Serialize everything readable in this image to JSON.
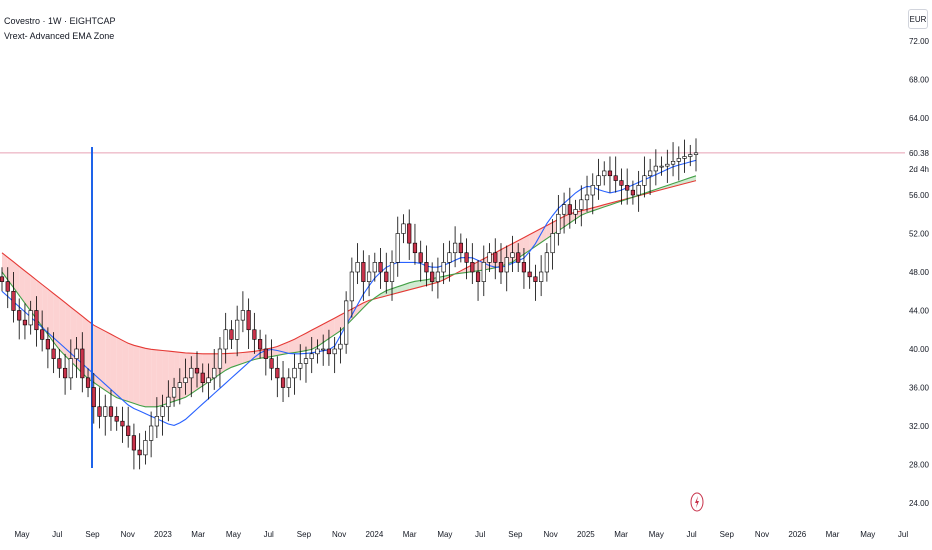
{
  "header": {
    "symbol_line": "Covestro · 1W · EIGHTCAP",
    "indicator_line": "Vrext- Advanced EMA Zone"
  },
  "currency_button": "EUR",
  "price_axis": {
    "ticks": [
      "72.00",
      "68.00",
      "64.00",
      "56.00",
      "52.00",
      "48.00",
      "44.00",
      "40.00",
      "36.00",
      "32.00",
      "28.00",
      "24.00"
    ],
    "current_price_label": "60.38",
    "countdown_label": "2d 4h"
  },
  "time_axis": {
    "labels": [
      "May",
      "Jul",
      "Sep",
      "Nov",
      "2023",
      "Mar",
      "May",
      "Jul",
      "Sep",
      "Nov",
      "2024",
      "Mar",
      "May",
      "Jul",
      "Sep",
      "Nov",
      "2025",
      "Mar",
      "May",
      "Jul",
      "Sep",
      "Nov",
      "2026",
      "Mar",
      "May",
      "Jul"
    ]
  },
  "colors": {
    "up_candle": "#ffffff",
    "down_candle": "#c8334b",
    "candle_outline": "#000000",
    "fast_ema": "#2962ff",
    "mid_ema": "#43a047",
    "slow_ema": "#e53935",
    "bull_zone": "#c8e6c9",
    "bear_zone": "#fbcaca",
    "price_line": "#e8a0b4",
    "vertical_marker": "#1e63e9"
  },
  "chart_data": {
    "type": "line",
    "ylim": [
      22,
      74
    ],
    "xlabel": "",
    "ylabel": "",
    "price_scale_ticks": [
      72,
      68,
      64,
      56,
      52,
      48,
      44,
      40,
      36,
      32,
      28,
      24
    ],
    "last_price": 60.38,
    "date_range": [
      "2022-03",
      "2026-07"
    ],
    "weekly_closes_approx": [
      47,
      46,
      44,
      43,
      42.5,
      44,
      42,
      41,
      40,
      39,
      38,
      37,
      39,
      40,
      37,
      36,
      34,
      33,
      34,
      33,
      32.5,
      32,
      31,
      29.5,
      29,
      30.5,
      32,
      33,
      34,
      35,
      36,
      36.5,
      37,
      38,
      37.5,
      36.5,
      37,
      38,
      40,
      42,
      41,
      43,
      44,
      42,
      41,
      40,
      39,
      38,
      37,
      36,
      37,
      38,
      38.5,
      39,
      39.5,
      40,
      40,
      39.5,
      40,
      40.5,
      45,
      48,
      49,
      47,
      48,
      49,
      48,
      47,
      49,
      52,
      53,
      51,
      50,
      49,
      48,
      47,
      48,
      49,
      50,
      51,
      50,
      49,
      48,
      47,
      49,
      50,
      49,
      48,
      49.5,
      50,
      49,
      48,
      47.5,
      47,
      48,
      50,
      52,
      54,
      55,
      54,
      54.5,
      55.5,
      56,
      57,
      58,
      58.5,
      58,
      57.5,
      57,
      56.5,
      56,
      57,
      58,
      58.5,
      59,
      59,
      59.2,
      59.5,
      59.8,
      60,
      60.2,
      60.38
    ],
    "series": [
      {
        "name": "",
        "role": "fast EMA",
        "values": [
          46,
          45,
          44,
          43,
          42,
          41,
          40,
          39,
          38,
          37,
          36,
          35,
          34,
          33.5,
          33,
          32.5,
          32,
          32.5,
          33.5,
          34.5,
          35.5,
          36.5,
          37.5,
          38.5,
          39.5,
          40,
          39.8,
          39.5,
          39.5,
          39.6,
          39.8,
          40,
          42,
          44,
          46,
          47.5,
          48.5,
          49,
          49,
          49,
          48.5,
          48.5,
          49,
          49.5,
          49.5,
          49,
          48.5,
          48.5,
          49,
          49.5,
          51,
          53,
          54.5,
          55.5,
          56.5,
          57,
          56.5,
          56.2,
          56.5,
          57,
          57.5,
          58,
          58.5,
          59,
          59.3,
          59.6
        ]
      },
      {
        "name": "",
        "role": "mid EMA",
        "values": [
          48,
          46,
          44,
          42,
          40,
          38.5,
          37,
          36,
          35,
          34.5,
          34,
          34,
          34.5,
          35,
          36,
          37,
          38,
          38.5,
          39,
          39.2,
          39.5,
          39.7,
          40,
          41,
          42,
          43.5,
          45,
          46,
          46.5,
          47,
          47.2,
          47.5,
          47.8,
          48,
          48.2,
          48.5,
          49,
          50,
          51,
          52,
          53,
          54,
          54.5,
          55,
          55.5,
          56,
          56.5,
          57,
          57.5,
          58
        ]
      },
      {
        "name": "",
        "role": "slow EMA",
        "values": [
          50,
          48.5,
          47,
          45.5,
          44,
          42.5,
          41.5,
          40.5,
          40,
          39.8,
          39.6,
          39.5,
          39.5,
          39.6,
          39.8,
          40.2,
          41,
          42,
          43,
          44,
          45,
          45.5,
          46,
          46.5,
          47,
          48,
          49,
          50,
          51,
          52,
          53,
          54,
          54.5,
          55,
          55.5,
          56,
          56.5,
          57,
          57.5
        ]
      }
    ],
    "grid": false,
    "legend": "top-left"
  }
}
